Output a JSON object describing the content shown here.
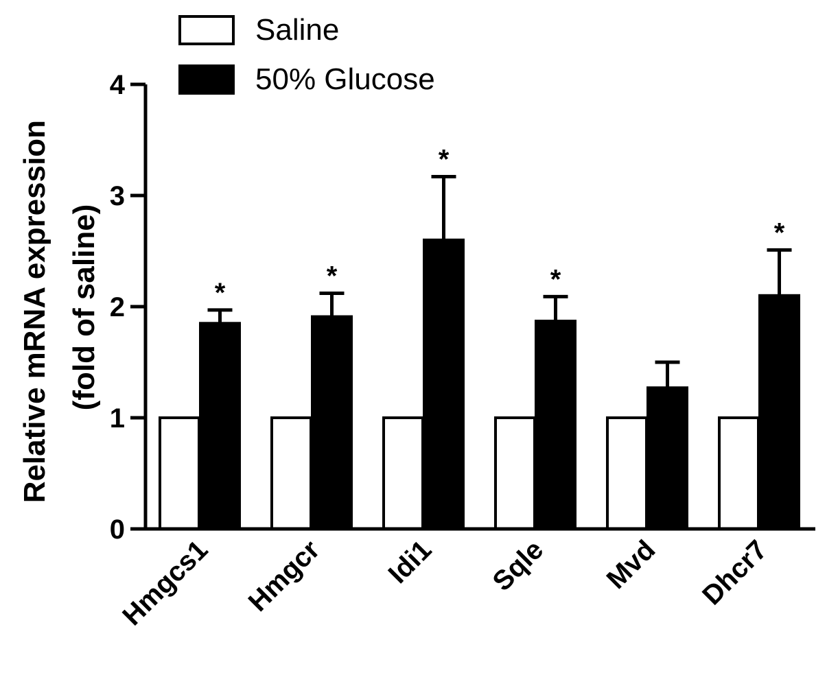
{
  "chart_data": {
    "type": "bar",
    "categories": [
      "Hmgcs1",
      "Hmgcr",
      "Idi1",
      "Sqle",
      "Mvd",
      "Dhcr7"
    ],
    "series": [
      {
        "name": "Saline",
        "color": "#ffffff",
        "values": [
          1,
          1,
          1,
          1,
          1,
          1
        ],
        "errors": [
          0,
          0,
          0,
          0,
          0,
          0
        ]
      },
      {
        "name": "50% Glucose",
        "color": "#000000",
        "values": [
          1.85,
          1.91,
          2.6,
          1.87,
          1.27,
          2.1
        ],
        "errors": [
          0.12,
          0.21,
          0.57,
          0.22,
          0.23,
          0.41
        ]
      }
    ],
    "significance": [
      "*",
      "*",
      "*",
      "*",
      "",
      "*"
    ],
    "ylabel_line1": "Relative mRNA expression",
    "ylabel_line2": "(fold of saline)",
    "xlabel": "",
    "ylim": [
      0,
      4
    ],
    "yticks": [
      "0",
      "1",
      "2",
      "3",
      "4"
    ],
    "grid": false,
    "legend_position": "top-left"
  }
}
